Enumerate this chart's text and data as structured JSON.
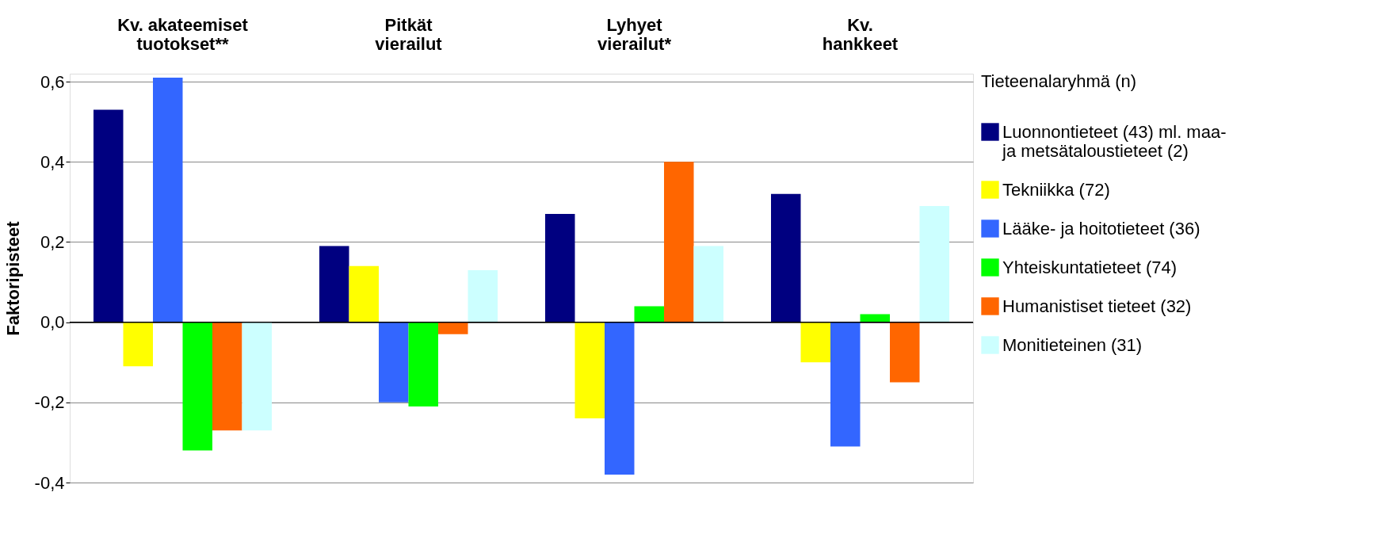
{
  "chart_data": {
    "type": "bar",
    "ylabel": "Faktoripisteet",
    "legend_title": "Tieteenalaryhmä (n)",
    "categories": [
      "Kv. akateemiset\ntuotokset**",
      "Pitkät\nvierailut",
      "Lyhyet\nvierailut*",
      "Kv.\nhankkeet"
    ],
    "series": [
      {
        "name": "Luonnontieteet (43) ml. maa-\nja metsätaloustieteet (2)",
        "color": "#000080",
        "values": [
          0.53,
          0.19,
          0.27,
          0.32
        ]
      },
      {
        "name": "Tekniikka (72)",
        "color": "#ffff00",
        "values": [
          -0.11,
          0.14,
          -0.24,
          -0.1
        ]
      },
      {
        "name": "Lääke- ja hoitotieteet (36)",
        "color": "#3366ff",
        "values": [
          0.61,
          -0.2,
          -0.38,
          -0.31
        ]
      },
      {
        "name": "Yhteiskuntatieteet (74)",
        "color": "#00ff00",
        "values": [
          -0.32,
          -0.21,
          0.04,
          0.02
        ]
      },
      {
        "name": "Humanistiset tieteet (32)",
        "color": "#ff6600",
        "values": [
          -0.27,
          -0.03,
          0.4,
          -0.15
        ]
      },
      {
        "name": "Monitieteinen (31)",
        "color": "#ccffff",
        "values": [
          -0.27,
          0.13,
          0.19,
          0.29
        ]
      }
    ],
    "ylim": [
      -0.4,
      0.62
    ],
    "yticks": [
      {
        "value": -0.4,
        "label": "-0,4"
      },
      {
        "value": -0.2,
        "label": "-0,2"
      },
      {
        "value": 0,
        "label": "0,0"
      },
      {
        "value": 0.2,
        "label": "0,2"
      },
      {
        "value": 0.4,
        "label": "0,4"
      },
      {
        "value": 0.6,
        "label": "0,6"
      }
    ],
    "grid": "y",
    "legend": "right"
  }
}
